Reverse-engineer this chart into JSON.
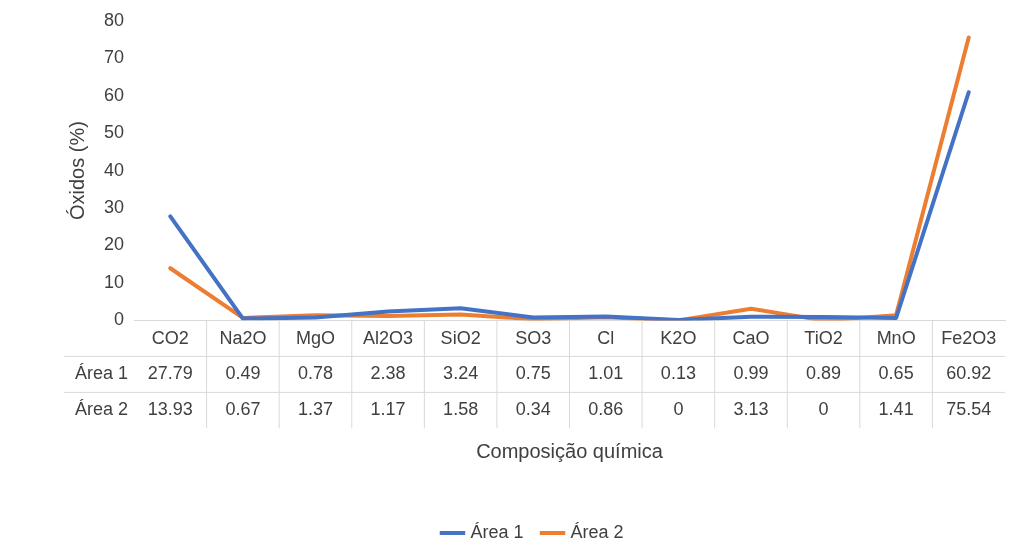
{
  "chart_data": {
    "type": "line",
    "xlabel": "Composição química",
    "ylabel": "Óxidos (%)",
    "categories": [
      "CO2",
      "Na2O",
      "MgO",
      "Al2O3",
      "SiO2",
      "SO3",
      "Cl",
      "K2O",
      "CaO",
      "TiO2",
      "MnO",
      "Fe2O3"
    ],
    "series": [
      {
        "name": "Área 1",
        "color": "#4472c4",
        "values": [
          27.79,
          0.49,
          0.78,
          2.38,
          3.24,
          0.75,
          1.01,
          0.13,
          0.99,
          0.89,
          0.65,
          60.92
        ]
      },
      {
        "name": "Área 2",
        "color": "#ed7d31",
        "values": [
          13.93,
          0.67,
          1.37,
          1.17,
          1.58,
          0.34,
          0.86,
          0,
          3.13,
          0,
          1.41,
          75.54
        ]
      }
    ],
    "ylim": [
      0,
      80
    ],
    "yticks": [
      0,
      10,
      20,
      30,
      40,
      50,
      60,
      70,
      80
    ],
    "grid": false,
    "legend": "bottom",
    "data_labels": true,
    "marker": "none",
    "line_style": "solid"
  }
}
